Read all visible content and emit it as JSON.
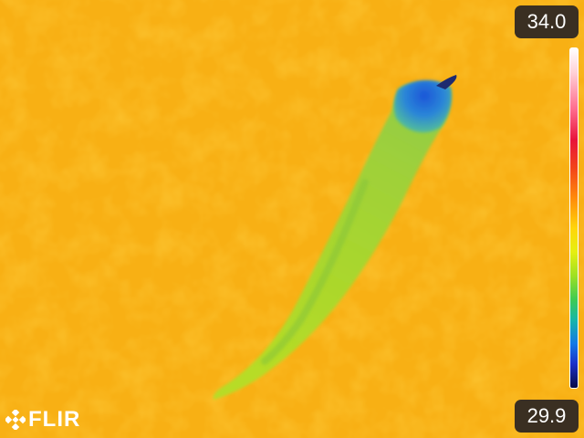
{
  "scale": {
    "max_label": "34.0",
    "min_label": "29.9"
  },
  "brand": {
    "logo_text": "FLIR"
  },
  "colors": {
    "background": "#f8b014",
    "object_warm": "#b4d82a",
    "object_cool": "#2a78e0",
    "label_box": "#3a2f22"
  }
}
